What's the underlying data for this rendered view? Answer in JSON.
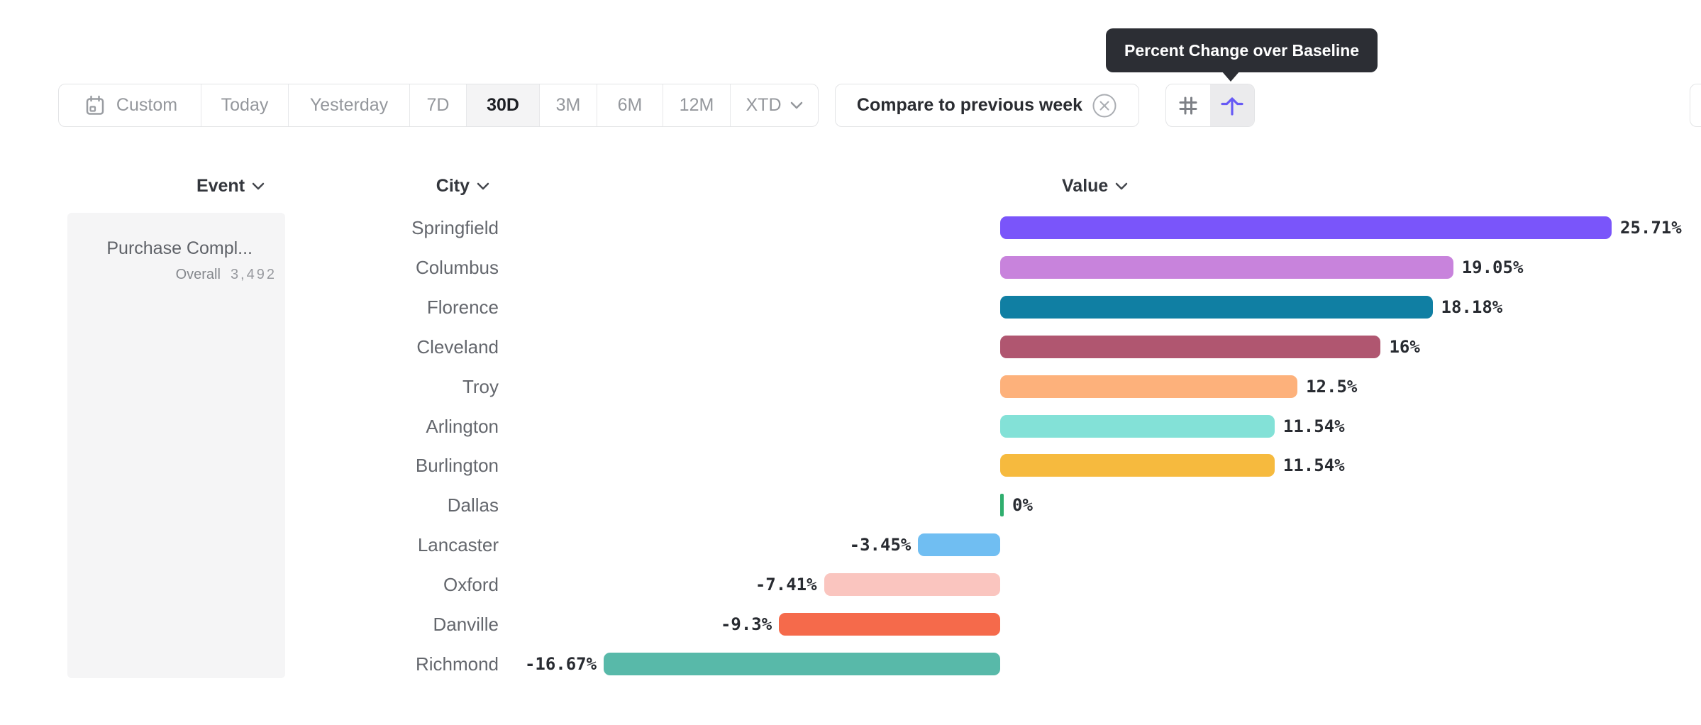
{
  "tooltip": {
    "text": "Percent Change over Baseline"
  },
  "toolbar": {
    "date_ranges": [
      {
        "label": "Custom",
        "icon": "calendar-icon",
        "selected": false
      },
      {
        "label": "Today",
        "selected": false
      },
      {
        "label": "Yesterday",
        "selected": false
      },
      {
        "label": "7D",
        "selected": false
      },
      {
        "label": "30D",
        "selected": true
      },
      {
        "label": "3M",
        "selected": false
      },
      {
        "label": "6M",
        "selected": false
      },
      {
        "label": "12M",
        "selected": false
      },
      {
        "label": "XTD",
        "chevron": true,
        "selected": false
      }
    ],
    "compare": {
      "label": "Compare to previous week",
      "icon": "close-circle-icon"
    },
    "view_toggles": [
      {
        "name": "grid-view",
        "icon": "hash-icon",
        "selected": false
      },
      {
        "name": "percent-change-view",
        "icon": "arrow-up-baseline-icon",
        "selected": true
      }
    ]
  },
  "table": {
    "columns": [
      {
        "label": "Event"
      },
      {
        "label": "City"
      },
      {
        "label": "Value"
      }
    ],
    "event": {
      "title": "Purchase Compl...",
      "overall_label": "Overall",
      "overall_value": "3,492"
    }
  },
  "chart_data": {
    "type": "bar",
    "orientation": "horizontal",
    "title": "Percent Change over Baseline",
    "xlabel": "Value",
    "ylabel": "City",
    "unit": "%",
    "baseline": 0,
    "categories": [
      "Springfield",
      "Columbus",
      "Florence",
      "Cleveland",
      "Troy",
      "Arlington",
      "Burlington",
      "Dallas",
      "Lancaster",
      "Oxford",
      "Danville",
      "Richmond"
    ],
    "values": [
      25.71,
      19.05,
      18.18,
      16,
      12.5,
      11.54,
      11.54,
      0,
      -3.45,
      -7.41,
      -9.3,
      -16.67
    ],
    "labels": [
      "25.71%",
      "19.05%",
      "18.18%",
      "16%",
      "12.5%",
      "11.54%",
      "11.54%",
      "0%",
      "-3.45%",
      "-7.41%",
      "-9.3%",
      "-16.67%"
    ],
    "colors": [
      "#7A55FA",
      "#C883DC",
      "#107FA3",
      "#B05670",
      "#FDB17B",
      "#83E1D7",
      "#F6BA3E",
      "#2FAE6E",
      "#70BEF2",
      "#FAC5BF",
      "#F56A4B",
      "#58B9A9"
    ]
  },
  "ui_colors": {
    "tooltip_bg": "#2c2e34",
    "accent_purple": "#675af5",
    "selected_bg": "#f4f4f5",
    "panel_bg": "#f5f5f6",
    "border": "#e3e4e6"
  }
}
